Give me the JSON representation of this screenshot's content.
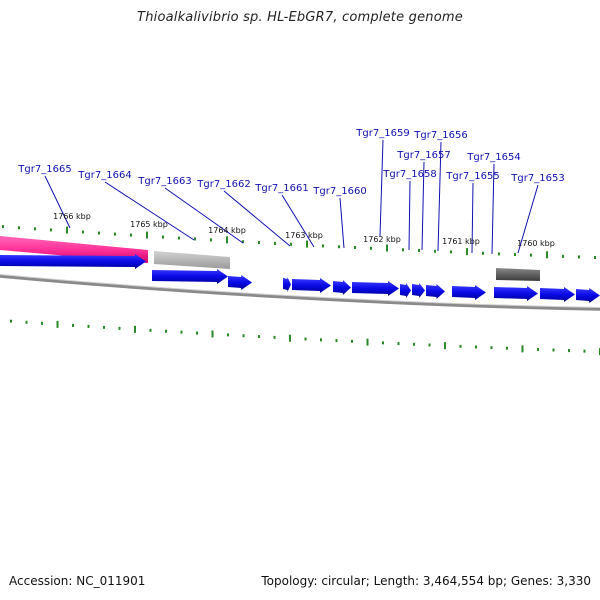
{
  "title": "Thioalkalivibrio sp. HL-EbGR7, complete genome",
  "footer": {
    "accession": "Accession: NC_011901",
    "summary": "Topology: circular; Length: 3,464,554 bp; Genes: 3,330"
  },
  "colors": {
    "gene": "#0a0ae6",
    "rna": "#ff3399",
    "gray_feature": "#b0b0b0",
    "dark_feature": "#606060",
    "tick": "#2a8a2a",
    "label": "#1010b0",
    "backbone": "#8a8a8a"
  },
  "kbp_ticks": [
    {
      "label": "1766 kbp"
    },
    {
      "label": "1765 kbp"
    },
    {
      "label": "1764 kbp"
    },
    {
      "label": "1763 kbp"
    },
    {
      "label": "1762 kbp"
    },
    {
      "label": "1761 kbp"
    },
    {
      "label": "1760 kbp"
    }
  ],
  "gene_labels": [
    {
      "name": "Tgr7_1665"
    },
    {
      "name": "Tgr7_1664"
    },
    {
      "name": "Tgr7_1663"
    },
    {
      "name": "Tgr7_1662"
    },
    {
      "name": "Tgr7_1661"
    },
    {
      "name": "Tgr7_1660"
    },
    {
      "name": "Tgr7_1659"
    },
    {
      "name": "Tgr7_1658"
    },
    {
      "name": "Tgr7_1657"
    },
    {
      "name": "Tgr7_1656"
    },
    {
      "name": "Tgr7_1655"
    },
    {
      "name": "Tgr7_1654"
    },
    {
      "name": "Tgr7_1653"
    }
  ]
}
